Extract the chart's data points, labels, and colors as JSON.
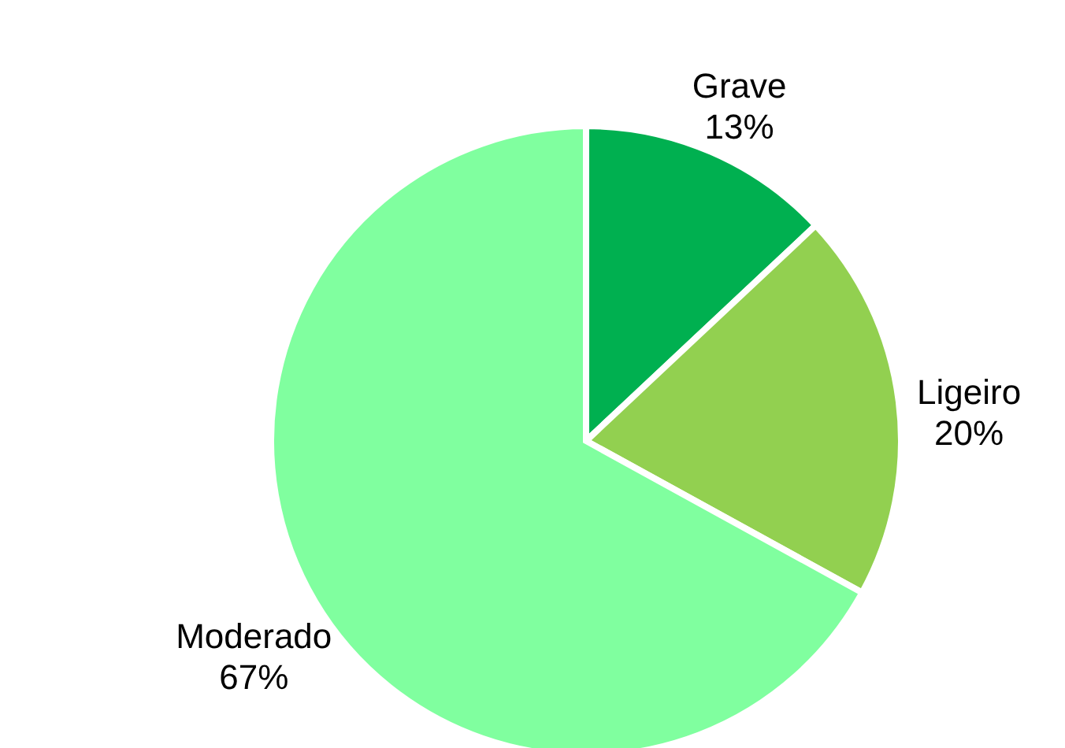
{
  "chart_data": {
    "type": "pie",
    "categories": [
      "Grave",
      "Ligeiro",
      "Moderado"
    ],
    "values": [
      13,
      20,
      67
    ],
    "value_labels": [
      "13%",
      "20%",
      "67%"
    ],
    "colors": [
      "#00b050",
      "#92d050",
      "#80ff9f"
    ]
  }
}
